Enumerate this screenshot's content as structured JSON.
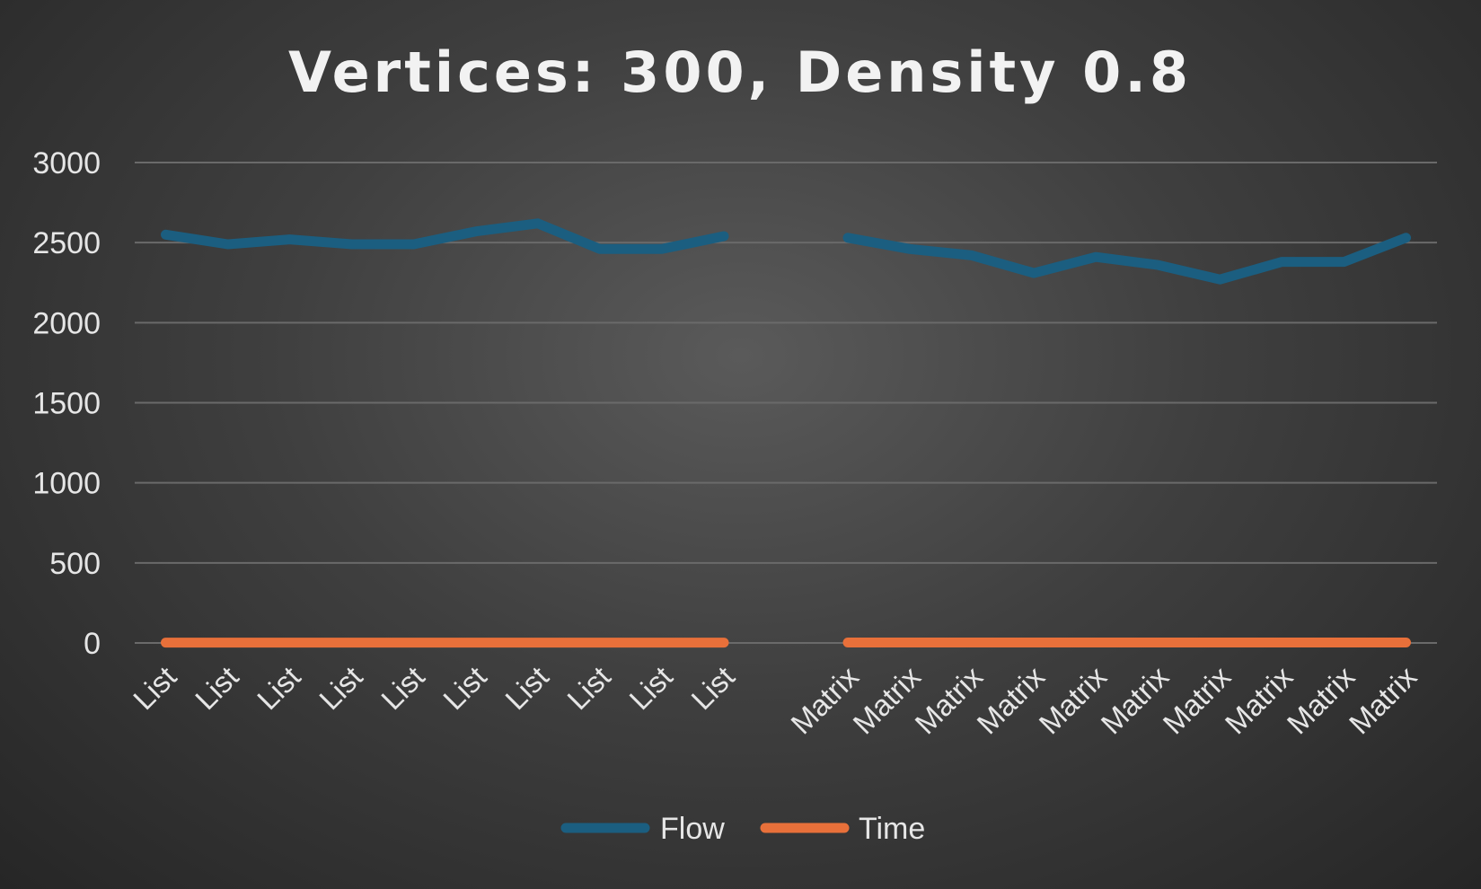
{
  "colors": {
    "flow": "#1b5e80",
    "time": "#e8703a"
  },
  "chart_data": {
    "type": "line",
    "title": "Vertices: 300, Density 0.8",
    "xlabel": "",
    "ylabel": "",
    "ylim": [
      0,
      3000
    ],
    "yticks": [
      "0",
      "500",
      "1000",
      "1500",
      "2000",
      "2500",
      "3000"
    ],
    "grid": true,
    "legend": "bottom-center",
    "categories": [
      "List",
      "List",
      "List",
      "List",
      "List",
      "List",
      "List",
      "List",
      "List",
      "List",
      "",
      "Matrix",
      "Matrix",
      "Matrix",
      "Matrix",
      "Matrix",
      "Matrix",
      "Matrix",
      "Matrix",
      "Matrix",
      "Matrix"
    ],
    "series": [
      {
        "name": "Flow",
        "values": [
          2550,
          2490,
          2520,
          2490,
          2490,
          2570,
          2620,
          2460,
          2460,
          2540,
          null,
          2530,
          2460,
          2420,
          2310,
          2410,
          2360,
          2270,
          2380,
          2380,
          2530
        ]
      },
      {
        "name": "Time",
        "values": [
          2,
          2,
          2,
          2,
          2,
          2,
          2,
          2,
          2,
          2,
          null,
          3,
          3,
          3,
          3,
          3,
          3,
          3,
          3,
          3,
          3
        ]
      }
    ]
  }
}
